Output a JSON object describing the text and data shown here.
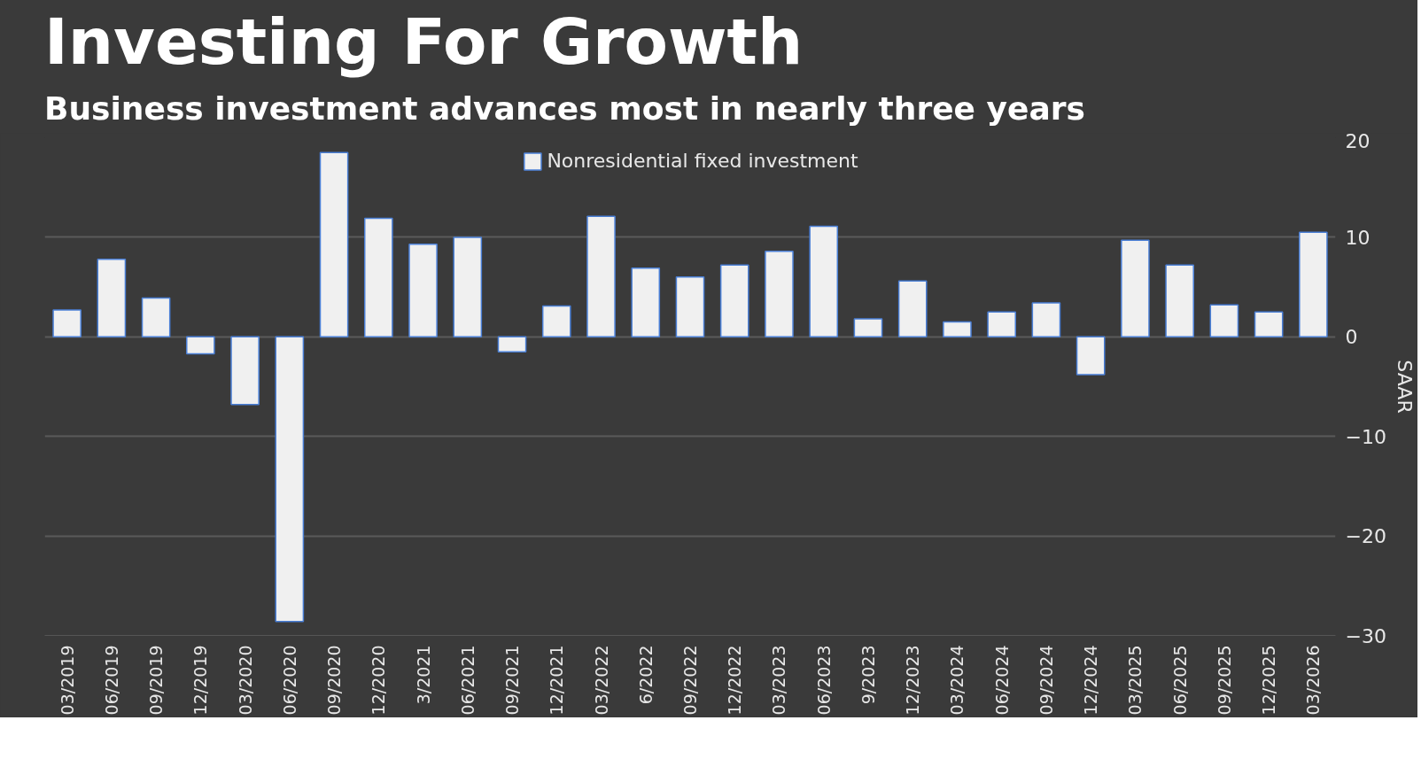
{
  "chart_data": {
    "type": "bar",
    "title": "Investing For Growth",
    "subtitle": "Business investment advances most in nearly three years",
    "ylabel": "SAAR",
    "categories": [
      "03/2019",
      "06/2019",
      "09/2019",
      "12/2019",
      "03/2020",
      "06/2020",
      "09/2020",
      "12/2020",
      "3/2021",
      "06/2021",
      "09/2021",
      "12/2021",
      "03/2022",
      "6/2022",
      "09/2022",
      "12/2022",
      "03/2023",
      "06/2023",
      "9/2023",
      "12/2023",
      "03/2024",
      "06/2024",
      "09/2024",
      "12/2024",
      "03/2025",
      "06/2025",
      "09/2025",
      "12/2025",
      "03/2026"
    ],
    "series": [
      {
        "name": "Nonresidential fixed investment",
        "color": "#f0f0f0",
        "values": [
          2.7,
          7.8,
          3.9,
          -1.7,
          -6.8,
          -28.6,
          18.5,
          11.9,
          9.3,
          10.0,
          -1.5,
          3.1,
          12.1,
          6.9,
          6.0,
          7.2,
          8.6,
          11.1,
          1.8,
          5.6,
          1.5,
          2.5,
          3.4,
          -3.8,
          9.7,
          7.2,
          3.2,
          2.5,
          10.5
        ]
      }
    ],
    "ylim": [
      -30,
      20
    ],
    "yticks": [
      -30,
      -20,
      -10,
      0,
      10,
      20
    ],
    "grid": "y",
    "legend": "top"
  }
}
